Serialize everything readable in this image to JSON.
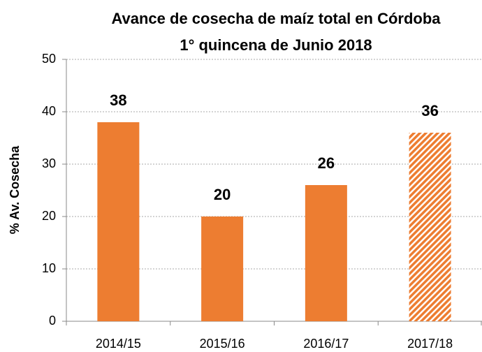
{
  "chart_data": {
    "type": "bar",
    "title": [
      "Avance de cosecha de maíz total en Córdoba",
      "1° quincena de Junio 2018"
    ],
    "ylabel": "% Av. Cosecha",
    "categories": [
      "2014/15",
      "2015/16",
      "2016/17",
      "2017/18"
    ],
    "values": [
      38,
      20,
      26,
      36
    ],
    "hatched": [
      false,
      false,
      false,
      true
    ],
    "color": "#ed7d31",
    "ylim": [
      0,
      50
    ],
    "yticks": [
      0,
      10,
      20,
      30,
      40,
      50
    ],
    "grid": true
  }
}
